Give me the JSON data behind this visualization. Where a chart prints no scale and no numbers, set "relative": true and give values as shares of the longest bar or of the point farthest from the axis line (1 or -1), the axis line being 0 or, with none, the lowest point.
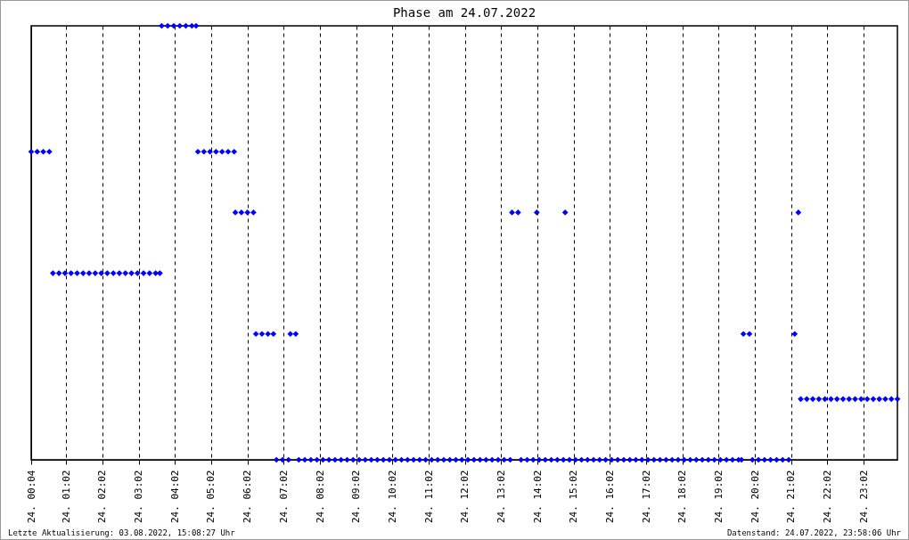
{
  "chart_data": {
    "type": "scatter",
    "title": "Phase am 24.07.2022",
    "relative": true,
    "marker": "diamond",
    "grid": "x",
    "xlim": [
      "2022-07-24T00:04",
      "2022-07-24T23:58"
    ],
    "xticks": [
      {
        "value": "2022-07-24T00:04",
        "label": "24. 00:04"
      },
      {
        "value": "2022-07-24T01:02",
        "label": "24. 01:02"
      },
      {
        "value": "2022-07-24T02:02",
        "label": "24. 02:02"
      },
      {
        "value": "2022-07-24T03:02",
        "label": "24. 03:02"
      },
      {
        "value": "2022-07-24T04:02",
        "label": "24. 04:02"
      },
      {
        "value": "2022-07-24T05:02",
        "label": "24. 05:02"
      },
      {
        "value": "2022-07-24T06:02",
        "label": "24. 06:02"
      },
      {
        "value": "2022-07-24T07:02",
        "label": "24. 07:02"
      },
      {
        "value": "2022-07-24T08:02",
        "label": "24. 08:02"
      },
      {
        "value": "2022-07-24T09:02",
        "label": "24. 09:02"
      },
      {
        "value": "2022-07-24T10:02",
        "label": "24. 10:02"
      },
      {
        "value": "2022-07-24T11:02",
        "label": "24. 11:02"
      },
      {
        "value": "2022-07-24T12:02",
        "label": "24. 12:02"
      },
      {
        "value": "2022-07-24T13:02",
        "label": "24. 13:02"
      },
      {
        "value": "2022-07-24T14:02",
        "label": "24. 14:02"
      },
      {
        "value": "2022-07-24T15:02",
        "label": "24. 15:02"
      },
      {
        "value": "2022-07-24T16:02",
        "label": "24. 16:02"
      },
      {
        "value": "2022-07-24T17:02",
        "label": "24. 17:02"
      },
      {
        "value": "2022-07-24T18:02",
        "label": "24. 18:02"
      },
      {
        "value": "2022-07-24T19:02",
        "label": "24. 19:02"
      },
      {
        "value": "2022-07-24T20:02",
        "label": "24. 20:02"
      },
      {
        "value": "2022-07-24T21:02",
        "label": "24. 21:02"
      },
      {
        "value": "2022-07-24T22:02",
        "label": "24. 22:02"
      },
      {
        "value": "2022-07-24T23:02",
        "label": "24. 23:02"
      }
    ],
    "series": [
      {
        "color": "#0000ff",
        "x": [
          "2022-07-24T00:04",
          "2022-07-24T00:14",
          "2022-07-24T00:24",
          "2022-07-24T00:34",
          "2022-07-24T00:40",
          "2022-07-24T00:50",
          "2022-07-24T01:00",
          "2022-07-24T01:10",
          "2022-07-24T01:20",
          "2022-07-24T01:30",
          "2022-07-24T01:40",
          "2022-07-24T01:50",
          "2022-07-24T02:00",
          "2022-07-24T02:10",
          "2022-07-24T02:20",
          "2022-07-24T02:30",
          "2022-07-24T02:40",
          "2022-07-24T02:50",
          "2022-07-24T03:00",
          "2022-07-24T03:10",
          "2022-07-24T03:20",
          "2022-07-24T03:30",
          "2022-07-24T03:37",
          "2022-07-24T03:40",
          "2022-07-24T03:50",
          "2022-07-24T04:00",
          "2022-07-24T04:10",
          "2022-07-24T04:20",
          "2022-07-24T04:30",
          "2022-07-24T04:37",
          "2022-07-24T04:40",
          "2022-07-24T04:50",
          "2022-07-24T05:00",
          "2022-07-24T05:10",
          "2022-07-24T05:20",
          "2022-07-24T05:30",
          "2022-07-24T05:40",
          "2022-07-24T05:42",
          "2022-07-24T05:52",
          "2022-07-24T06:02",
          "2022-07-24T06:12",
          "2022-07-24T06:16",
          "2022-07-24T06:26",
          "2022-07-24T06:36",
          "2022-07-24T06:45",
          "2022-07-24T06:50",
          "2022-07-24T07:00",
          "2022-07-24T07:10",
          "2022-07-24T07:13",
          "2022-07-24T07:22",
          "2022-07-24T07:27",
          "2022-07-24T07:37",
          "2022-07-24T07:47",
          "2022-07-24T07:57",
          "2022-07-24T08:07",
          "2022-07-24T08:17",
          "2022-07-24T08:27",
          "2022-07-24T08:37",
          "2022-07-24T08:47",
          "2022-07-24T08:57",
          "2022-07-24T09:07",
          "2022-07-24T09:17",
          "2022-07-24T09:27",
          "2022-07-24T09:37",
          "2022-07-24T09:47",
          "2022-07-24T09:57",
          "2022-07-24T10:07",
          "2022-07-24T10:17",
          "2022-07-24T10:27",
          "2022-07-24T10:37",
          "2022-07-24T10:47",
          "2022-07-24T10:57",
          "2022-07-24T11:07",
          "2022-07-24T11:17",
          "2022-07-24T11:27",
          "2022-07-24T11:37",
          "2022-07-24T11:47",
          "2022-07-24T11:57",
          "2022-07-24T12:07",
          "2022-07-24T12:17",
          "2022-07-24T12:27",
          "2022-07-24T12:37",
          "2022-07-24T12:47",
          "2022-07-24T12:57",
          "2022-07-24T13:07",
          "2022-07-24T13:17",
          "2022-07-24T13:20",
          "2022-07-24T13:30",
          "2022-07-24T13:35",
          "2022-07-24T13:45",
          "2022-07-24T13:55",
          "2022-07-24T14:05",
          "2022-07-24T14:15",
          "2022-07-24T14:25",
          "2022-07-24T14:35",
          "2022-07-24T14:45",
          "2022-07-24T14:55",
          "2022-07-24T15:05",
          "2022-07-24T15:15",
          "2022-07-24T15:25",
          "2022-07-24T15:35",
          "2022-07-24T15:45",
          "2022-07-24T15:55",
          "2022-07-24T16:05",
          "2022-07-24T16:15",
          "2022-07-24T16:25",
          "2022-07-24T16:35",
          "2022-07-24T16:45",
          "2022-07-24T16:55",
          "2022-07-24T17:05",
          "2022-07-24T17:15",
          "2022-07-24T17:25",
          "2022-07-24T17:35",
          "2022-07-24T17:45",
          "2022-07-24T17:55",
          "2022-07-24T18:05",
          "2022-07-24T18:15",
          "2022-07-24T18:25",
          "2022-07-24T18:35",
          "2022-07-24T18:45",
          "2022-07-24T18:55",
          "2022-07-24T19:05",
          "2022-07-24T19:15",
          "2022-07-24T19:25",
          "2022-07-24T19:35",
          "2022-07-24T19:40",
          "2022-07-24T14:01",
          "2022-07-24T14:48",
          "2022-07-24T19:43",
          "2022-07-24T19:53",
          "2022-07-24T19:58",
          "2022-07-24T20:08",
          "2022-07-24T20:18",
          "2022-07-24T20:28",
          "2022-07-24T20:38",
          "2022-07-24T20:48",
          "2022-07-24T20:58",
          "2022-07-24T21:08",
          "2022-07-24T21:14",
          "2022-07-24T21:18",
          "2022-07-24T21:28",
          "2022-07-24T21:38",
          "2022-07-24T21:48",
          "2022-07-24T21:58",
          "2022-07-24T22:08",
          "2022-07-24T22:18",
          "2022-07-24T22:28",
          "2022-07-24T22:38",
          "2022-07-24T22:48",
          "2022-07-24T22:58",
          "2022-07-24T23:08",
          "2022-07-24T23:18",
          "2022-07-24T23:28",
          "2022-07-24T23:38",
          "2022-07-24T23:48",
          "2022-07-24T23:58"
        ],
        "values": [
          0.71,
          0.71,
          0.71,
          0.71,
          0.43,
          0.43,
          0.43,
          0.43,
          0.43,
          0.43,
          0.43,
          0.43,
          0.43,
          0.43,
          0.43,
          0.43,
          0.43,
          0.43,
          0.43,
          0.43,
          0.43,
          0.43,
          0.43,
          1,
          1,
          1,
          1,
          1,
          1,
          1,
          0.71,
          0.71,
          0.71,
          0.71,
          0.71,
          0.71,
          0.71,
          0.57,
          0.57,
          0.57,
          0.57,
          0.29,
          0.29,
          0.29,
          0.29,
          0,
          0,
          0,
          0.29,
          0.29,
          0,
          0,
          0,
          0,
          0,
          0,
          0,
          0,
          0,
          0,
          0,
          0,
          0,
          0,
          0,
          0,
          0,
          0,
          0,
          0,
          0,
          0,
          0,
          0,
          0,
          0,
          0,
          0,
          0,
          0,
          0,
          0,
          0,
          0,
          0,
          0,
          0.57,
          0.57,
          0,
          0,
          0,
          0,
          0,
          0,
          0,
          0,
          0,
          0,
          0,
          0,
          0,
          0,
          0,
          0,
          0,
          0,
          0,
          0,
          0,
          0,
          0,
          0,
          0,
          0,
          0,
          0,
          0,
          0,
          0,
          0,
          0,
          0,
          0,
          0,
          0,
          0,
          0.57,
          0.57,
          0.29,
          0.29,
          0,
          0,
          0,
          0,
          0,
          0,
          0,
          0.29,
          0.57,
          0.14,
          0.14,
          0.14,
          0.14,
          0.14,
          0.14,
          0.14,
          0.14,
          0.14,
          0.14,
          0.14,
          0.14,
          0.14,
          0.14,
          0.14,
          0.14,
          0.14
        ]
      }
    ],
    "annotations": [
      "Letzte Aktualisierung: 03.08.2022, 15:08:27 Uhr",
      "Datenstand: 24.07.2022, 23:58:06 Uhr"
    ]
  }
}
